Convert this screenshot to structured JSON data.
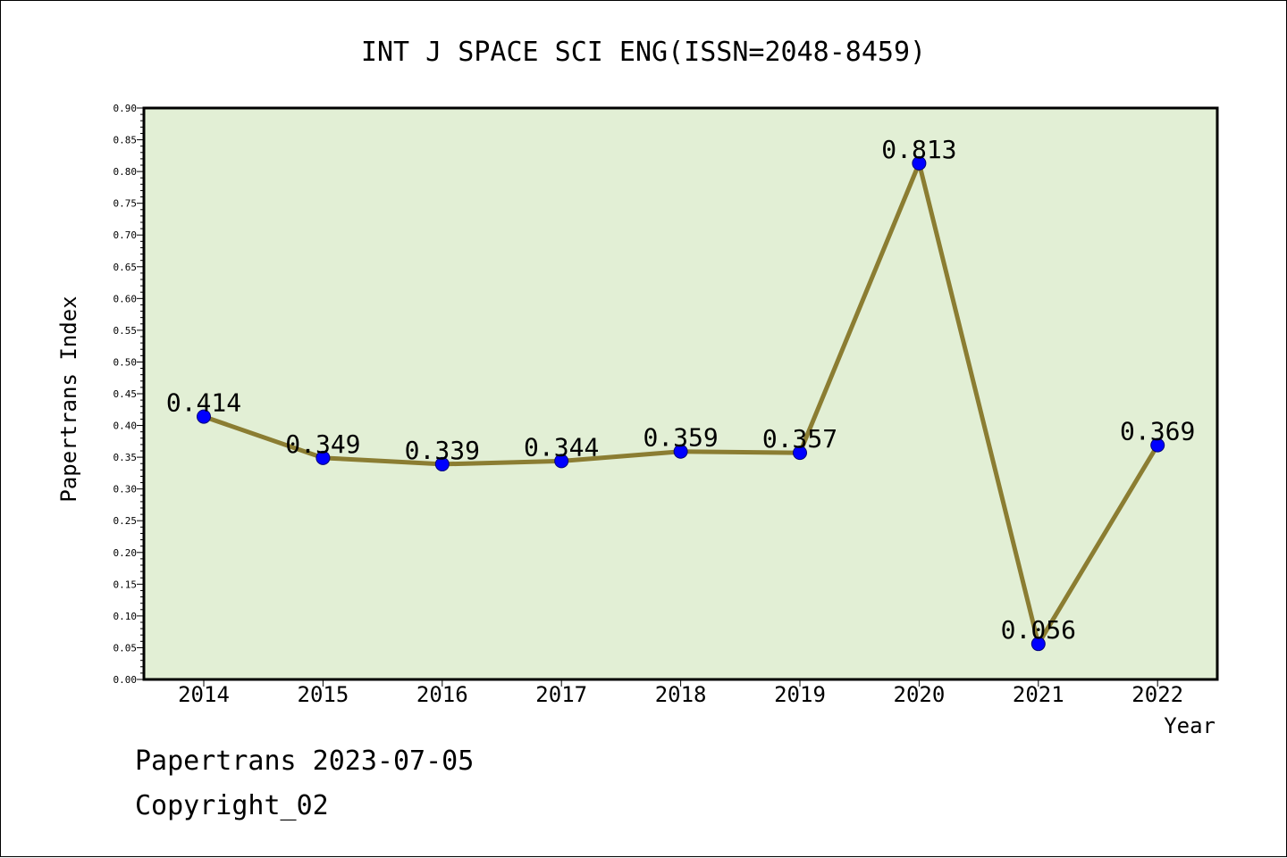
{
  "chart_data": {
    "type": "line",
    "title": "INT J SPACE SCI ENG(ISSN=2048-8459)",
    "xlabel": "Year",
    "ylabel": "Papertrans Index",
    "categories": [
      "2014",
      "2015",
      "2016",
      "2017",
      "2018",
      "2019",
      "2020",
      "2021",
      "2022"
    ],
    "series": [
      {
        "values": [
          0.414,
          0.349,
          0.339,
          0.344,
          0.359,
          0.357,
          0.813,
          0.056,
          0.369
        ],
        "labels": [
          "0.414",
          "0.349",
          "0.339",
          "0.344",
          "0.359",
          "0.357",
          "0.813",
          "0.056",
          "0.369"
        ]
      }
    ],
    "ylim": [
      0,
      0.9
    ],
    "yticks": [
      "0.00",
      "0.05",
      "0.10",
      "0.15",
      "0.20",
      "0.25",
      "0.30",
      "0.35",
      "0.40",
      "0.45",
      "0.50",
      "0.55",
      "0.60",
      "0.65",
      "0.70",
      "0.75",
      "0.80",
      "0.85",
      "0.90"
    ],
    "grid": false,
    "legend": "none",
    "colors": {
      "plot_background": "#e2efd5",
      "line": "#8b7d32",
      "marker": "#0000ff",
      "axis": "#000000"
    }
  },
  "footer": {
    "line1": "Papertrans 2023-07-05",
    "line2": "Copyright_02"
  }
}
